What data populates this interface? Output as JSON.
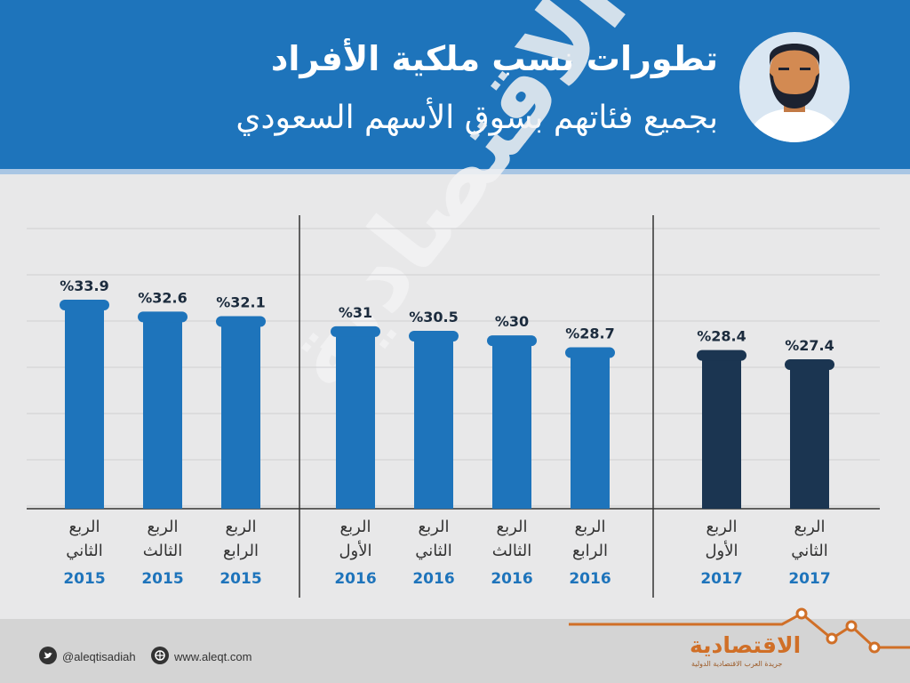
{
  "header": {
    "title": "تطورات نسب ملكية الأفراد",
    "subtitle": "بجميع فئاتهم بسوق الأسهم السعودي"
  },
  "watermark": "الاقتصادية",
  "colors": {
    "header": "#1e74bb",
    "bar_2015_2016": "#1e74bb",
    "bar_2017": "#1b3551",
    "year_label": "#1e74bb",
    "quarter_label": "#333333"
  },
  "chart_data": {
    "type": "bar",
    "categories": [
      "الربع الثاني 2015",
      "الربع الثالث 2015",
      "الربع الرابع 2015",
      "الربع الأول 2016",
      "الربع الثاني 2016",
      "الربع الثالث 2016",
      "الربع الرابع 2016",
      "الربع الأول 2017",
      "الربع الثاني 2017"
    ],
    "values": [
      33.9,
      32.6,
      32.1,
      31,
      30.5,
      30,
      28.7,
      28.4,
      27.4
    ],
    "value_labels": [
      "%33.9",
      "%32.6",
      "%32.1",
      "%31",
      "%30.5",
      "%30",
      "%28.7",
      "%28.4",
      "%27.4"
    ],
    "quarters": [
      [
        "الربع",
        "الثاني"
      ],
      [
        "الربع",
        "الثالث"
      ],
      [
        "الربع",
        "الرابع"
      ],
      [
        "الربع",
        "الأول"
      ],
      [
        "الربع",
        "الثاني"
      ],
      [
        "الربع",
        "الثالث"
      ],
      [
        "الربع",
        "الرابع"
      ],
      [
        "الربع",
        "الأول"
      ],
      [
        "الربع",
        "الثاني"
      ]
    ],
    "years": [
      "2015",
      "2015",
      "2015",
      "2016",
      "2016",
      "2016",
      "2016",
      "2017",
      "2017"
    ],
    "grid": true,
    "title": "",
    "xlabel": "",
    "ylabel": ""
  },
  "footer": {
    "twitter": "@aleqtisadiah",
    "website": "www.aleqt.com",
    "brand": "الاقتصادية",
    "brand_sub": "جريدة العرب الاقتصادية الدولية"
  }
}
